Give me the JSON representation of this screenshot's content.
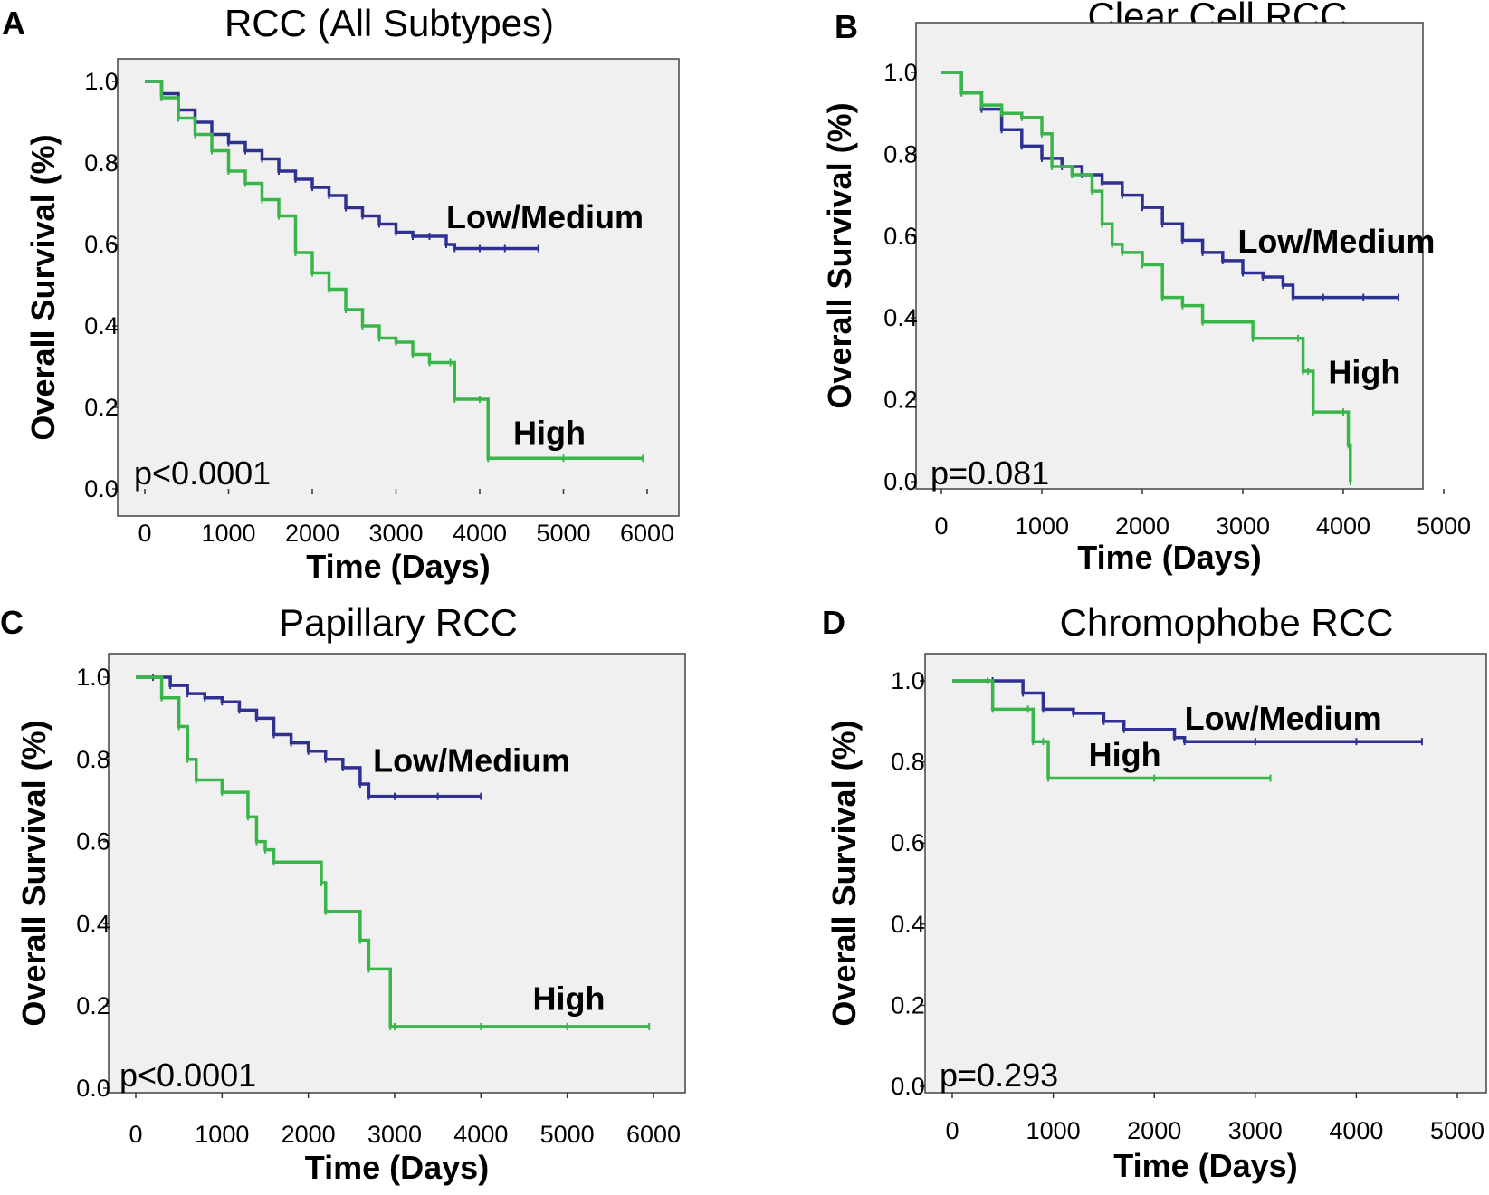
{
  "chart_data": [
    {
      "type": "line",
      "panel": "A",
      "title": "RCC (All Subtypes)",
      "xlabel": "Time (Days)",
      "ylabel": "Overall Survival (%)",
      "xlim": [
        0,
        6000
      ],
      "ylim": [
        0,
        1
      ],
      "xticks": [
        "0",
        "1000",
        "2000",
        "3000",
        "4000",
        "5000",
        "6000"
      ],
      "yticks": [
        "0.0",
        "0.2",
        "0.4",
        "0.6",
        "0.8",
        "1.0"
      ],
      "pvalue": "p<0.0001",
      "series": [
        {
          "name": "Low/Medium",
          "color": "#2e3192",
          "x": [
            0,
            200,
            400,
            600,
            800,
            1000,
            1200,
            1400,
            1600,
            1800,
            2000,
            2200,
            2400,
            2600,
            2800,
            3000,
            3200,
            3400,
            3600,
            3700,
            4000,
            4300,
            4700
          ],
          "y": [
            1.0,
            0.97,
            0.93,
            0.9,
            0.87,
            0.85,
            0.83,
            0.81,
            0.78,
            0.76,
            0.74,
            0.72,
            0.69,
            0.67,
            0.65,
            0.63,
            0.62,
            0.62,
            0.6,
            0.59,
            0.59,
            0.59,
            0.59
          ]
        },
        {
          "name": "High",
          "color": "#39b54a",
          "x": [
            0,
            200,
            400,
            600,
            800,
            1000,
            1200,
            1400,
            1600,
            1800,
            2000,
            2200,
            2400,
            2600,
            2800,
            3000,
            3200,
            3400,
            3650,
            3700,
            4000,
            4100,
            5000,
            5950
          ],
          "y": [
            1.0,
            0.96,
            0.91,
            0.87,
            0.83,
            0.78,
            0.75,
            0.71,
            0.67,
            0.58,
            0.53,
            0.49,
            0.44,
            0.4,
            0.37,
            0.36,
            0.33,
            0.31,
            0.31,
            0.22,
            0.22,
            0.075,
            0.075,
            0.075
          ]
        }
      ],
      "annotations": [
        {
          "text": "Low/Medium",
          "x": 3600,
          "y": 0.64
        },
        {
          "text": "High",
          "x": 4400,
          "y": 0.11
        }
      ]
    },
    {
      "type": "line",
      "panel": "B",
      "title": "Clear Cell RCC",
      "xlabel": "Time (Days)",
      "ylabel": "Overall Survival (%)",
      "xlim": [
        0,
        5000
      ],
      "ylim": [
        0,
        1
      ],
      "xticks": [
        "0",
        "1000",
        "2000",
        "3000",
        "4000",
        "5000"
      ],
      "yticks": [
        "0.0",
        "0.2",
        "0.4",
        "0.6",
        "0.8",
        "1.0"
      ],
      "pvalue": "p=0.081",
      "series": [
        {
          "name": "Low/Medium",
          "color": "#2e3192",
          "x": [
            0,
            200,
            400,
            600,
            800,
            1000,
            1200,
            1400,
            1600,
            1800,
            2000,
            2200,
            2400,
            2600,
            2800,
            3000,
            3200,
            3400,
            3500,
            3800,
            4200,
            4550
          ],
          "y": [
            1.0,
            0.95,
            0.91,
            0.86,
            0.82,
            0.79,
            0.77,
            0.75,
            0.73,
            0.7,
            0.67,
            0.63,
            0.59,
            0.56,
            0.54,
            0.51,
            0.5,
            0.48,
            0.45,
            0.45,
            0.45,
            0.45
          ]
        },
        {
          "name": "High",
          "color": "#39b54a",
          "x": [
            0,
            200,
            400,
            600,
            800,
            1000,
            1100,
            1300,
            1500,
            1600,
            1700,
            1800,
            2000,
            2200,
            2400,
            2600,
            3100,
            3550,
            3600,
            3650,
            3700,
            4000,
            4050,
            4070
          ],
          "y": [
            1.0,
            0.95,
            0.92,
            0.9,
            0.89,
            0.85,
            0.77,
            0.75,
            0.71,
            0.63,
            0.58,
            0.56,
            0.53,
            0.45,
            0.43,
            0.39,
            0.35,
            0.35,
            0.27,
            0.27,
            0.17,
            0.17,
            0.09,
            0.0
          ]
        }
      ],
      "annotations": [
        {
          "text": "Low/Medium",
          "x": 2950,
          "y": 0.56
        },
        {
          "text": "High",
          "x": 3850,
          "y": 0.24
        }
      ]
    },
    {
      "type": "line",
      "panel": "C",
      "title": "Papillary RCC",
      "xlabel": "Time (Days)",
      "ylabel": "Overall Survival (%)",
      "xlim": [
        0,
        6000
      ],
      "ylim": [
        0,
        1
      ],
      "xticks": [
        "0",
        "1000",
        "2000",
        "3000",
        "4000",
        "5000",
        "6000"
      ],
      "yticks": [
        "0.0",
        "0.2",
        "0.4",
        "0.6",
        "0.8",
        "1.0"
      ],
      "pvalue": "p<0.0001",
      "series": [
        {
          "name": "Low/Medium",
          "color": "#2e3192",
          "x": [
            0,
            200,
            400,
            600,
            800,
            1000,
            1200,
            1400,
            1600,
            1800,
            2000,
            2200,
            2400,
            2600,
            2700,
            3000,
            3500,
            4000
          ],
          "y": [
            1.0,
            1.0,
            0.98,
            0.96,
            0.95,
            0.94,
            0.92,
            0.9,
            0.86,
            0.84,
            0.82,
            0.8,
            0.78,
            0.74,
            0.71,
            0.71,
            0.71,
            0.71
          ]
        },
        {
          "name": "High",
          "color": "#39b54a",
          "x": [
            0,
            300,
            500,
            600,
            700,
            1000,
            1300,
            1400,
            1500,
            1600,
            2150,
            2200,
            2600,
            2700,
            2950,
            3000,
            4000,
            5000,
            5950
          ],
          "y": [
            1.0,
            0.95,
            0.88,
            0.8,
            0.75,
            0.72,
            0.66,
            0.6,
            0.58,
            0.55,
            0.5,
            0.43,
            0.36,
            0.29,
            0.15,
            0.15,
            0.15,
            0.15,
            0.15
          ]
        }
      ],
      "annotations": [
        {
          "text": "Low/Medium",
          "x": 2750,
          "y": 0.77
        },
        {
          "text": "High",
          "x": 4600,
          "y": 0.19
        }
      ]
    },
    {
      "type": "line",
      "panel": "D",
      "title": "Chromophobe RCC",
      "xlabel": "Time (Days)",
      "ylabel": "Overall Survival (%)",
      "xlim": [
        0,
        5000
      ],
      "ylim": [
        0,
        1
      ],
      "xticks": [
        "0",
        "1000",
        "2000",
        "3000",
        "4000",
        "5000"
      ],
      "yticks": [
        "0.0",
        "0.2",
        "0.4",
        "0.6",
        "0.8",
        "1.0"
      ],
      "pvalue": "p=0.293",
      "series": [
        {
          "name": "Low/Medium",
          "color": "#2e3192",
          "x": [
            0,
            400,
            700,
            900,
            1200,
            1500,
            1700,
            2200,
            2300,
            3000,
            4000,
            4650
          ],
          "y": [
            1.0,
            1.0,
            0.97,
            0.93,
            0.92,
            0.9,
            0.88,
            0.86,
            0.85,
            0.85,
            0.85,
            0.85
          ]
        },
        {
          "name": "High",
          "color": "#39b54a",
          "x": [
            0,
            350,
            400,
            750,
            800,
            900,
            950,
            2000,
            3150
          ],
          "y": [
            1.0,
            1.0,
            0.93,
            0.93,
            0.85,
            0.85,
            0.76,
            0.76,
            0.76
          ]
        }
      ],
      "annotations": [
        {
          "text": "Low/Medium",
          "x": 2300,
          "y": 0.88
        },
        {
          "text": "High",
          "x": 1350,
          "y": 0.79
        }
      ]
    }
  ]
}
